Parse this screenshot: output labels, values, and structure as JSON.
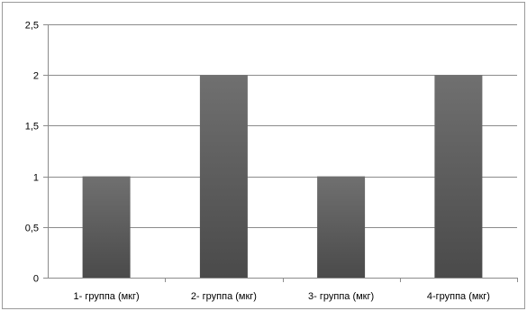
{
  "chart_data": {
    "type": "bar",
    "categories": [
      "1- группа (мкг)",
      "2- группа (мкг)",
      "3- группа (мкг)",
      "4-группа (мкг)"
    ],
    "values": [
      1,
      2,
      1,
      2
    ],
    "ylim": [
      0,
      2.5
    ],
    "yticks": [
      "0",
      "0,5",
      "1",
      "1,5",
      "2",
      "2,5"
    ],
    "grid": true,
    "legend": "none",
    "colors": {
      "bar_top": "#707070",
      "bar_bottom": "#4a4a4a",
      "grid": "#8c8c8c",
      "axis": "#8c8c8c"
    }
  }
}
